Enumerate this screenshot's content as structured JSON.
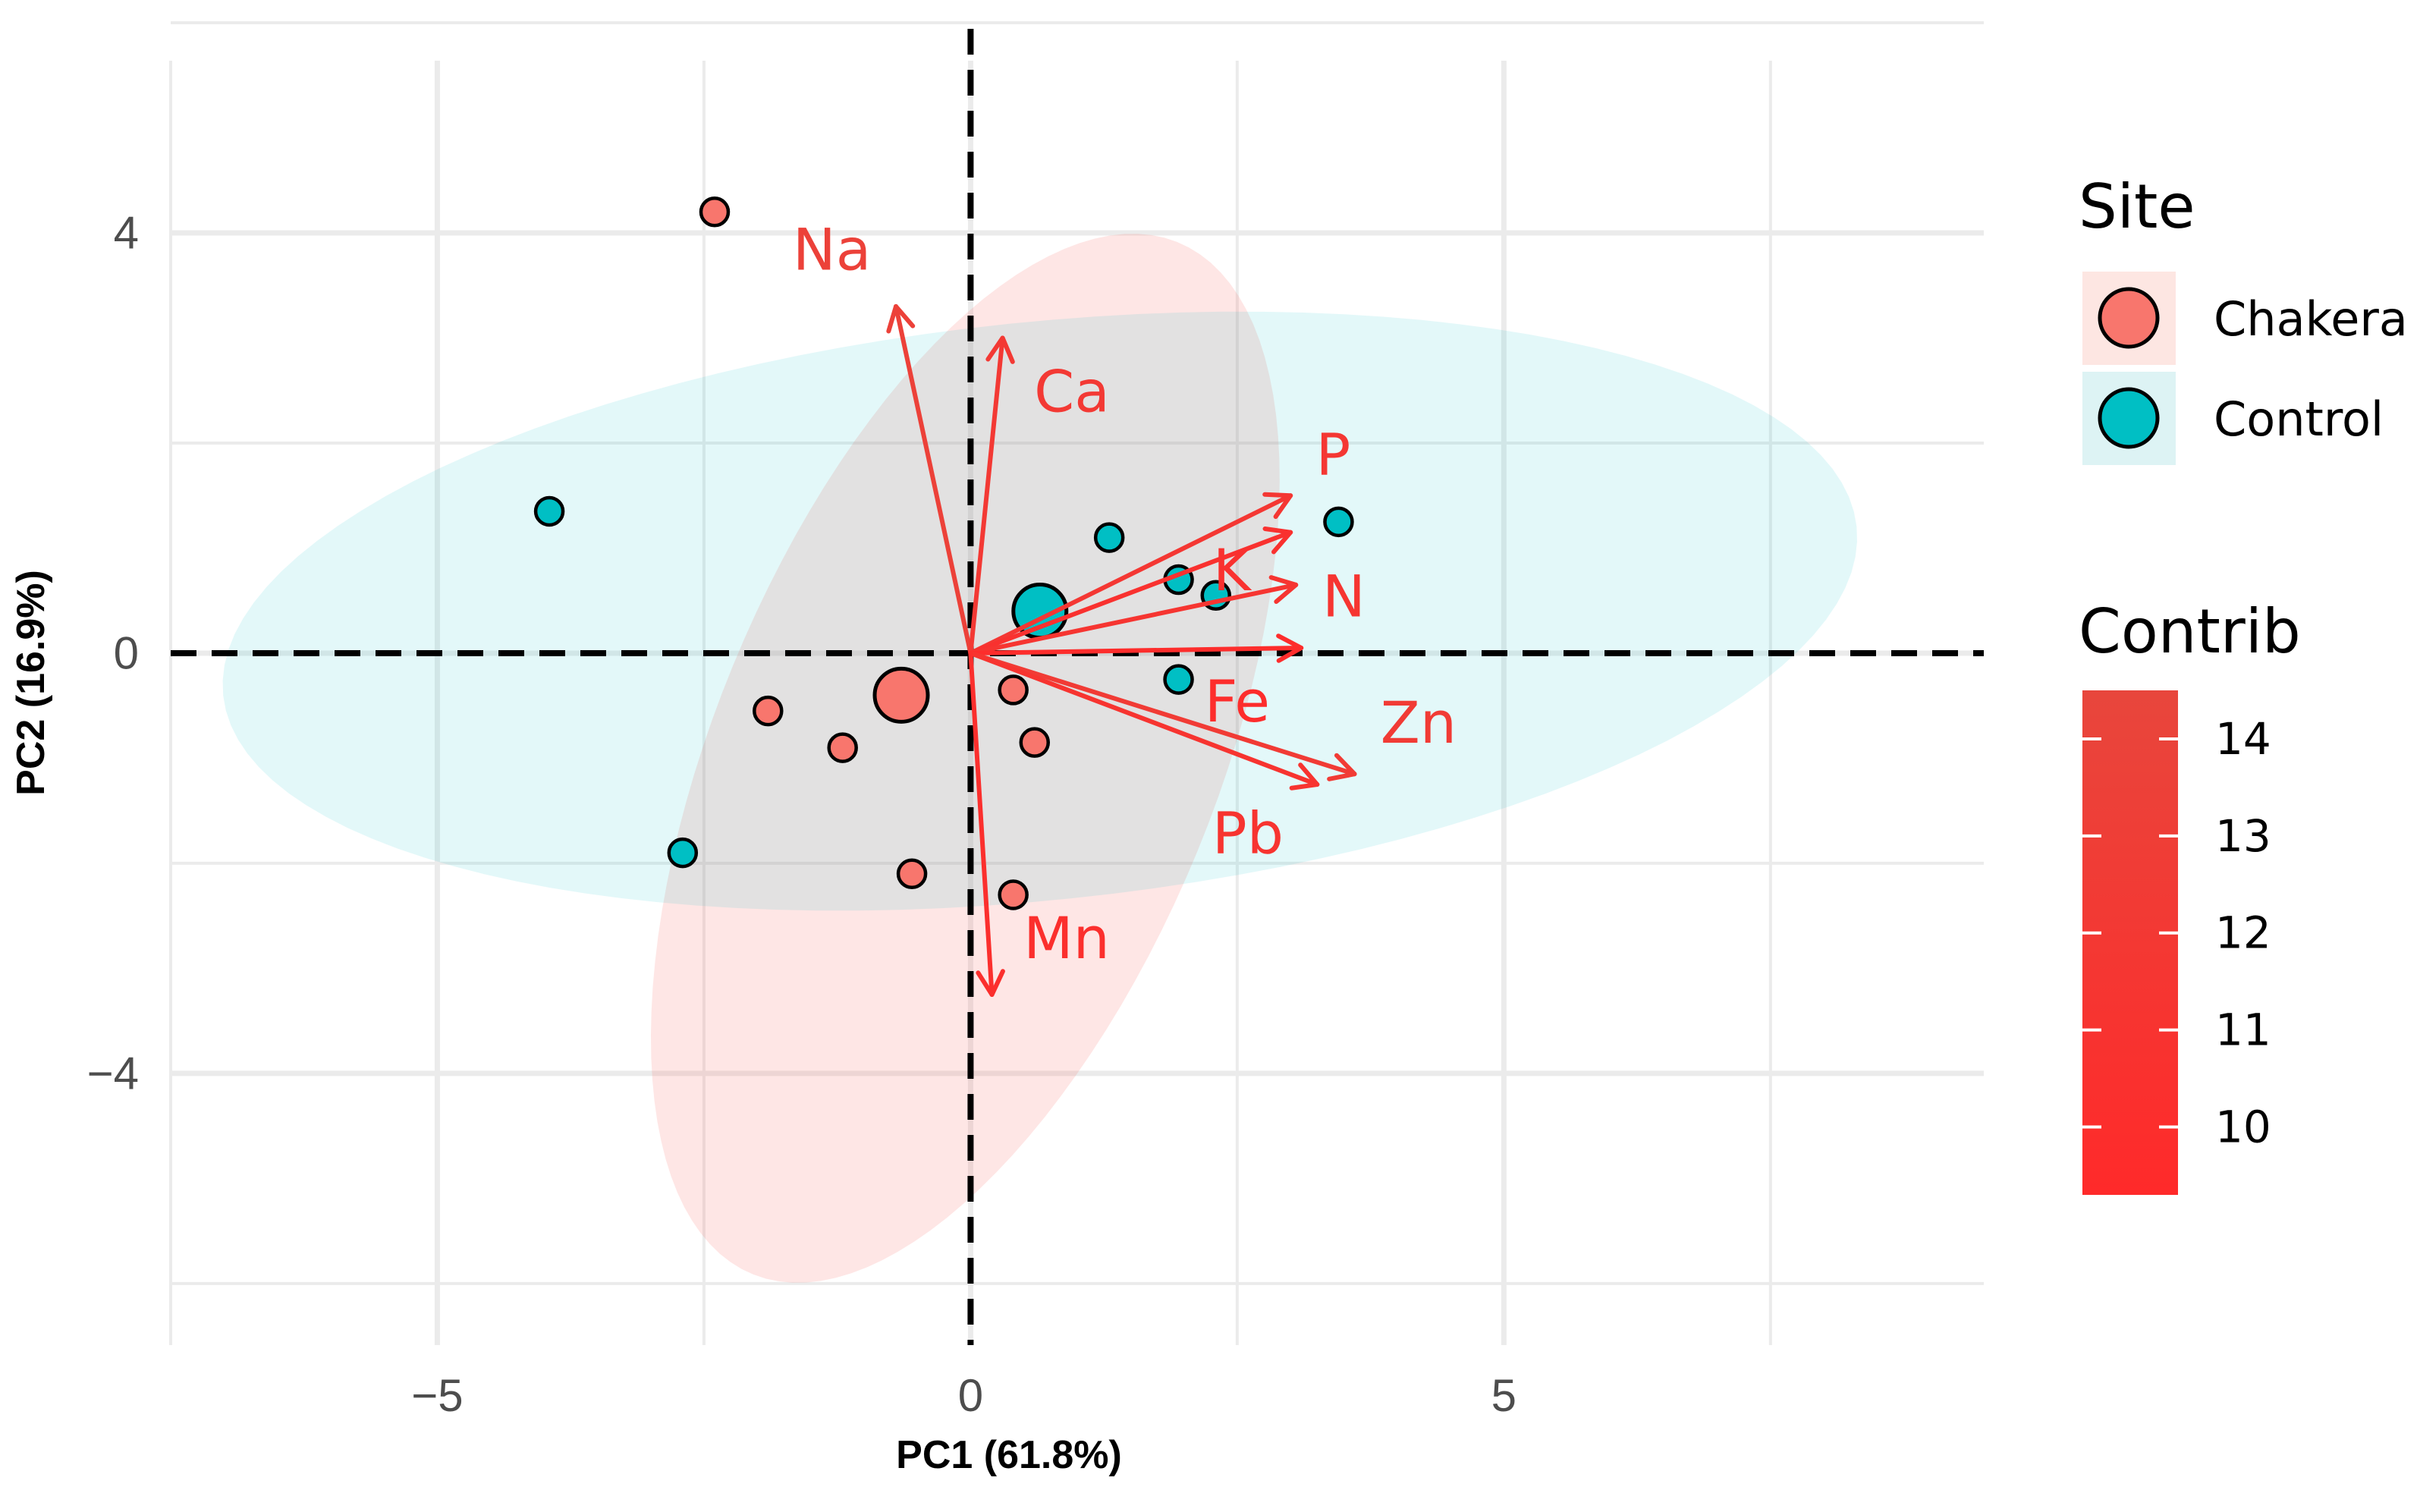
{
  "chart_data": {
    "type": "scatter",
    "subtype": "pca-biplot",
    "xlabel": "PC1 (61.8%)",
    "ylabel": "PC2 (16.9%)",
    "xlim": [
      -7.5,
      9.5
    ],
    "ylim": [
      -6.6,
      6.0
    ],
    "x_ticks": [
      -5,
      0,
      5
    ],
    "y_ticks": [
      -4,
      0,
      4
    ],
    "grid": true,
    "colors": {
      "Chakera": "#F8766D",
      "Control": "#00BFC4",
      "arrow": "#FF3B30"
    },
    "series": [
      {
        "name": "Chakera",
        "points": [
          [
            -2.4,
            4.2
          ],
          [
            -1.9,
            -0.55
          ],
          [
            -1.2,
            -0.9
          ],
          [
            -0.55,
            -2.1
          ],
          [
            0.4,
            -0.35
          ],
          [
            0.6,
            -0.85
          ],
          [
            0.4,
            -2.3
          ]
        ],
        "centroid": [
          -0.65,
          -0.4
        ],
        "ellipse": {
          "center": [
            -0.05,
            -1.0
          ],
          "rx": 5.3,
          "ry": 2.35,
          "angle_deg": 68
        }
      },
      {
        "name": "Control",
        "points": [
          [
            -3.95,
            1.35
          ],
          [
            -2.7,
            -1.9
          ],
          [
            1.3,
            1.1
          ],
          [
            1.95,
            0.7
          ],
          [
            2.3,
            0.55
          ],
          [
            1.95,
            -0.25
          ],
          [
            3.45,
            1.25
          ]
        ],
        "centroid": [
          0.65,
          0.4
        ],
        "ellipse": {
          "center": [
            0.65,
            0.4
          ],
          "rx": 7.7,
          "ry": 2.75,
          "angle_deg": 6
        }
      }
    ],
    "variables": [
      {
        "name": "Na",
        "x": -0.7,
        "y": 3.3,
        "contrib": 13.6,
        "label_pos": [
          -1.3,
          3.8
        ]
      },
      {
        "name": "Ca",
        "x": 0.3,
        "y": 3.0,
        "contrib": 12.1,
        "label_pos": [
          0.95,
          2.45
        ]
      },
      {
        "name": "P",
        "x": 3.0,
        "y": 1.5,
        "contrib": 11.8,
        "label_pos": [
          3.4,
          1.85
        ]
      },
      {
        "name": "K",
        "x": 3.0,
        "y": 1.15,
        "contrib": 10.6,
        "label_pos": [
          2.45,
          0.75
        ]
      },
      {
        "name": "N",
        "x": 3.05,
        "y": 0.65,
        "contrib": 11.4,
        "label_pos": [
          3.5,
          0.5
        ]
      },
      {
        "name": "Fe",
        "x": 3.1,
        "y": 0.05,
        "contrib": 9.8,
        "label_pos": [
          2.5,
          -0.5
        ]
      },
      {
        "name": "Zn",
        "x": 3.6,
        "y": -1.15,
        "contrib": 12.4,
        "label_pos": [
          4.2,
          -0.7
        ]
      },
      {
        "name": "Pb",
        "x": 3.25,
        "y": -1.25,
        "contrib": 11.1,
        "label_pos": [
          2.6,
          -1.75
        ]
      },
      {
        "name": "Mn",
        "x": 0.2,
        "y": -3.25,
        "contrib": 10.2,
        "label_pos": [
          0.9,
          -2.75
        ]
      }
    ],
    "legend": {
      "position": "right",
      "site_title": "Site",
      "site_entries": [
        "Chakera",
        "Control"
      ],
      "contrib_title": "Contrib",
      "contrib_range": [
        9.3,
        14.5
      ],
      "contrib_ticks": [
        10,
        11,
        12,
        13,
        14
      ],
      "contrib_colors": [
        "#FF2A2A",
        "#E8463C"
      ]
    }
  }
}
